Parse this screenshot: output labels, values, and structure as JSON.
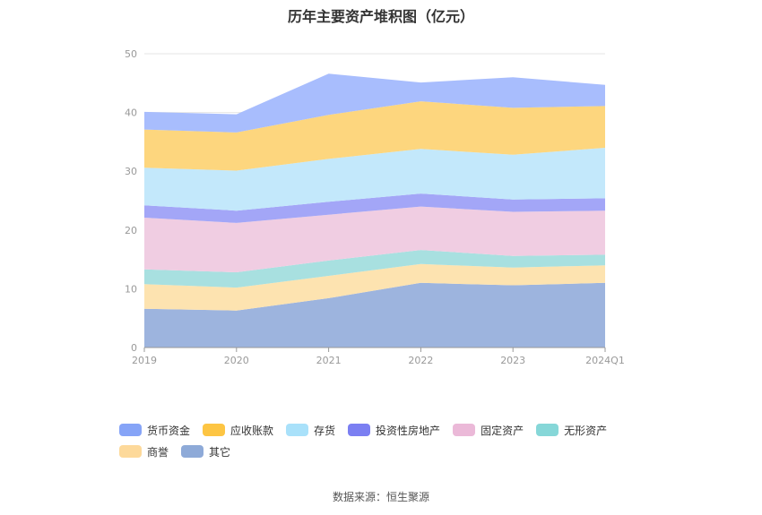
{
  "chart_data": {
    "type": "area",
    "title": "历年主要资产堆积图（亿元）",
    "categories": [
      "2019",
      "2020",
      "2021",
      "2022",
      "2023",
      "2024Q1"
    ],
    "ylim": [
      0,
      50
    ],
    "yticks": [
      0,
      10,
      20,
      30,
      40,
      50
    ],
    "grid": true,
    "legend_position": "bottom",
    "series": [
      {
        "name": "其它",
        "color": "#9db4de",
        "values": [
          6.6,
          6.3,
          8.4,
          11.0,
          10.6,
          11.0
        ]
      },
      {
        "name": "商誉",
        "color": "#fde3b0",
        "values": [
          4.2,
          3.9,
          3.8,
          3.2,
          3.0,
          3.0
        ]
      },
      {
        "name": "无形资产",
        "color": "#a8e0e0",
        "values": [
          2.5,
          2.6,
          2.6,
          2.4,
          2.0,
          1.8
        ]
      },
      {
        "name": "固定资产",
        "color": "#f0cde2",
        "values": [
          8.8,
          8.4,
          7.8,
          7.4,
          7.5,
          7.5
        ]
      },
      {
        "name": "投资性房地产",
        "color": "#a3a6f7",
        "values": [
          2.1,
          2.1,
          2.2,
          2.2,
          2.1,
          2.1
        ]
      },
      {
        "name": "存货",
        "color": "#c3e8fb",
        "values": [
          6.4,
          6.8,
          7.3,
          7.6,
          7.6,
          8.6
        ]
      },
      {
        "name": "应收账款",
        "color": "#fdd67e",
        "values": [
          6.5,
          6.5,
          7.5,
          8.1,
          8.0,
          7.1
        ]
      },
      {
        "name": "货币资金",
        "color": "#a8bdfd",
        "values": [
          3.0,
          3.1,
          7.0,
          3.2,
          5.2,
          3.6
        ]
      }
    ]
  },
  "legend": [
    {
      "label": "货币资金",
      "color": "#86a4f7"
    },
    {
      "label": "应收账款",
      "color": "#fdc543"
    },
    {
      "label": "存货",
      "color": "#a9e1fa"
    },
    {
      "label": "投资性房地产",
      "color": "#7b7ff2"
    },
    {
      "label": "固定资产",
      "color": "#ebb9d8"
    },
    {
      "label": "无形资产",
      "color": "#86d7d8"
    },
    {
      "label": "商誉",
      "color": "#fdd99a"
    },
    {
      "label": "其它",
      "color": "#8eaad8"
    }
  ],
  "source": "数据来源：恒生聚源"
}
